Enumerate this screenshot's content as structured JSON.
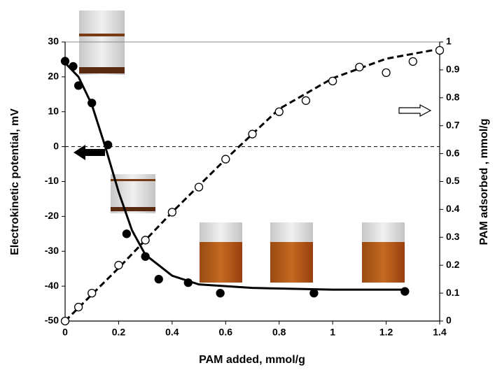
{
  "chart_data": {
    "type": "scatter",
    "x_label": "PAM added, mmol/g",
    "y_label": "Electrokinetic potential, mV",
    "y2_label": "PAM adsorbed , mmol/g",
    "xlim": [
      0,
      1.4
    ],
    "xticks": [
      0,
      0.2,
      0.4,
      0.6,
      0.8,
      1,
      1.2,
      1.4
    ],
    "ylim": [
      -50,
      30
    ],
    "yticks": [
      -50,
      -40,
      -30,
      -20,
      -10,
      0,
      10,
      20,
      30
    ],
    "y2lim": [
      0,
      1
    ],
    "y2ticks": [
      0,
      0.1,
      0.2,
      0.3,
      0.4,
      0.5,
      0.6,
      0.7,
      0.8,
      0.9,
      1
    ],
    "zero_line": true,
    "series": [
      {
        "style": "filled-marker",
        "color": "#000000",
        "x": [
          0,
          0.03,
          0.05,
          0.1,
          0.16,
          0.23,
          0.3,
          0.35,
          0.46,
          0.58,
          0.93,
          1.27
        ],
        "values": [
          24.5,
          23,
          17.5,
          12.5,
          0.5,
          -25,
          -31.5,
          -38,
          -39,
          -42,
          -42,
          -41.5
        ]
      },
      {
        "style": "open-marker",
        "color": "#000000",
        "axis": "y2",
        "x": [
          0,
          0.05,
          0.1,
          0.2,
          0.3,
          0.4,
          0.5,
          0.6,
          0.7,
          0.8,
          0.9,
          1.0,
          1.1,
          1.2,
          1.3,
          1.4
        ],
        "values": [
          0,
          0.05,
          0.1,
          0.2,
          0.29,
          0.39,
          0.48,
          0.58,
          0.67,
          0.75,
          0.79,
          0.86,
          0.91,
          0.89,
          0.93,
          0.97
        ]
      },
      {
        "style": "solid-line",
        "color": "#000000",
        "x": [
          0,
          0.05,
          0.1,
          0.15,
          0.2,
          0.25,
          0.3,
          0.4,
          0.5,
          0.7,
          1.0,
          1.27
        ],
        "values": [
          24,
          20,
          12,
          0,
          -13,
          -24,
          -31,
          -37,
          -39.5,
          -40.5,
          -41,
          -41
        ]
      },
      {
        "style": "dashed-line",
        "color": "#000000",
        "axis": "y2",
        "x": [
          0,
          0.2,
          0.4,
          0.6,
          0.8,
          1.0,
          1.2,
          1.4
        ],
        "values": [
          0,
          0.19,
          0.39,
          0.58,
          0.76,
          0.87,
          0.94,
          0.975
        ]
      }
    ]
  }
}
